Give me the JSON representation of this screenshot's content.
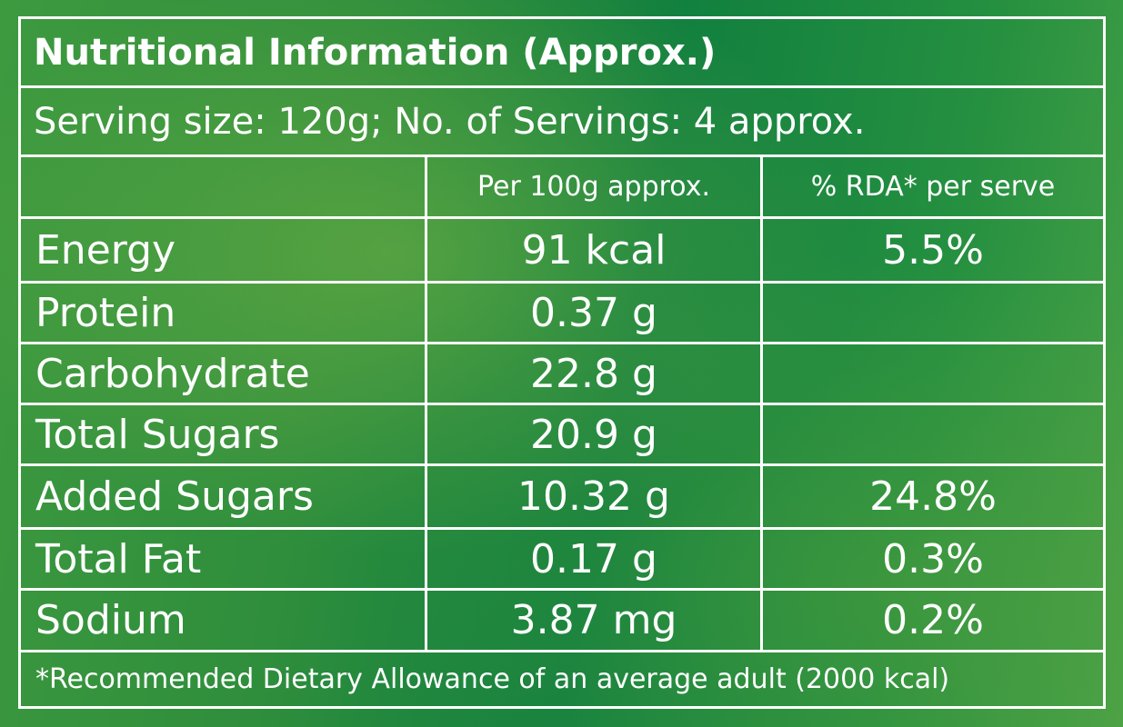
{
  "label": {
    "title": "Nutritional Information (Approx.)",
    "serving": "Serving size: 120g; No. of Servings: 4 approx.",
    "columns": {
      "nutrient": "",
      "per100g": "Per 100g approx.",
      "rda": "% RDA* per serve"
    },
    "rows": [
      {
        "nutrient": "Energy",
        "per100g": "91 kcal",
        "rda": "5.5%"
      },
      {
        "nutrient": "Protein",
        "per100g": "0.37 g",
        "rda": ""
      },
      {
        "nutrient": "Carbohydrate",
        "per100g": "22.8 g",
        "rda": ""
      },
      {
        "nutrient": "Total Sugars",
        "per100g": "20.9 g",
        "rda": ""
      },
      {
        "nutrient": "Added Sugars",
        "per100g": "10.32 g",
        "rda": "24.8%"
      },
      {
        "nutrient": "Total Fat",
        "per100g": "0.17 g",
        "rda": "0.3%"
      },
      {
        "nutrient": "Sodium",
        "per100g": "3.87 mg",
        "rda": "0.2%"
      }
    ],
    "footnote": "*Recommended Dietary Allowance of an average adult (2000 kcal)",
    "colors": {
      "background": "#1f8a3f",
      "text": "#ffffff",
      "border": "#ffffff"
    }
  }
}
